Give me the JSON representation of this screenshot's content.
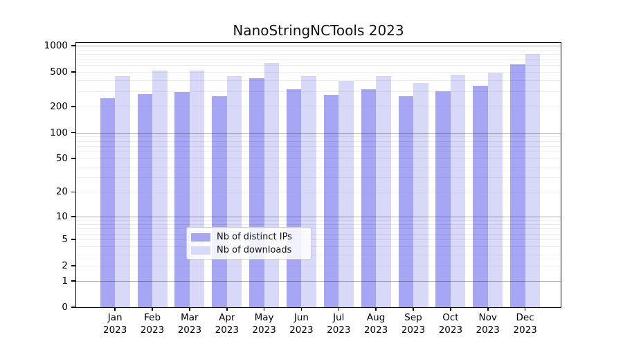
{
  "chart_data": {
    "type": "bar",
    "title": "NanoStringNCTools 2023",
    "categories": [
      "Jan 2023",
      "Feb 2023",
      "Mar 2023",
      "Apr 2023",
      "May 2023",
      "Jun 2023",
      "Jul 2023",
      "Aug 2023",
      "Sep 2023",
      "Oct 2023",
      "Nov 2023",
      "Dec 2023"
    ],
    "series": [
      {
        "name": "Nb of distinct IPs",
        "color": "#a6a6f5",
        "values": [
          250,
          280,
          295,
          265,
          420,
          315,
          271,
          313,
          261,
          296,
          344,
          612
        ]
      },
      {
        "name": "Nb of downloads",
        "color": "#d8d8f8",
        "values": [
          450,
          517,
          517,
          448,
          630,
          450,
          390,
          445,
          370,
          462,
          493,
          800
        ]
      }
    ],
    "xlabel": "",
    "ylabel": "",
    "y_ticks": [
      0,
      1,
      2,
      5,
      10,
      20,
      50,
      100,
      200,
      500,
      1000
    ],
    "y_scale": "log10(value+1)",
    "ylim": [
      0,
      1055
    ],
    "grid": "horizontal, major decades dark + minor light, drawn over bars",
    "legend_position": "bottom-center-inside",
    "axis_color": "#000000",
    "grid_major_color": "#aaaaaa",
    "grid_minor_color": "#ebebeb"
  }
}
